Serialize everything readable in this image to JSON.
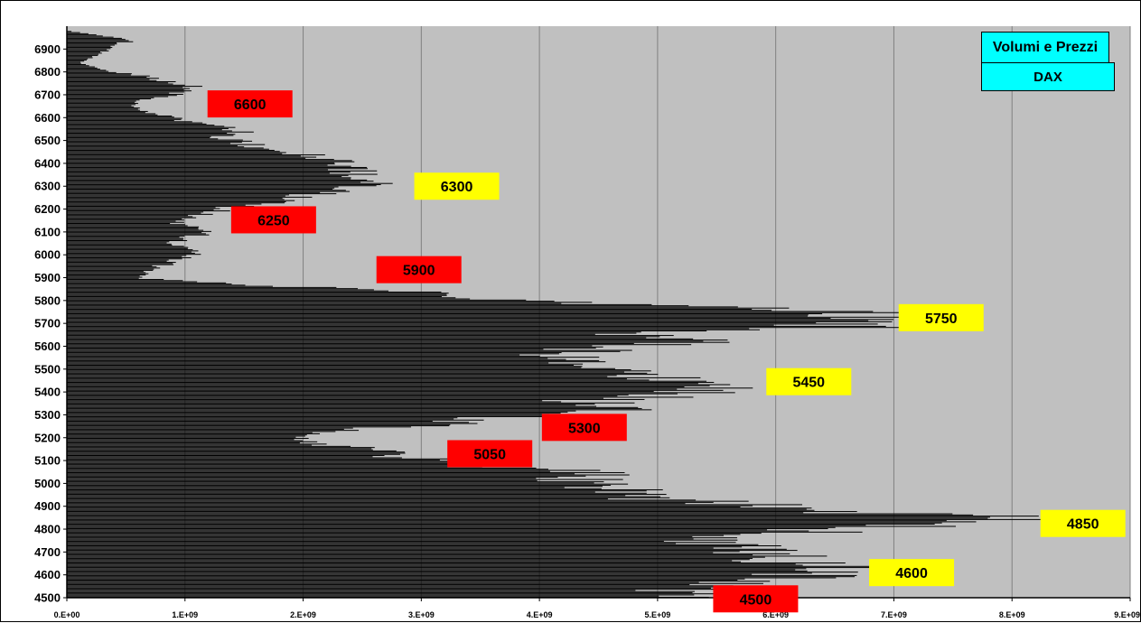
{
  "legend": {
    "title": "Volumi e Prezzi",
    "subtitle": "DAX"
  },
  "colors": {
    "plot_bg": "#c0c0c0",
    "bars": "#000000",
    "grid": "#808080",
    "support_label": "#ff0000",
    "resistance_label": "#ffff00"
  },
  "chart_data": {
    "type": "bar",
    "orientation": "horizontal",
    "title": "",
    "xlabel": "",
    "ylabel": "",
    "xlim": [
      0,
      9000000000
    ],
    "ylim": [
      4500,
      7000
    ],
    "grid": "vertical",
    "x_ticks": [
      "0.E+00",
      "1.E+09",
      "2.E+09",
      "3.E+09",
      "4.E+09",
      "5.E+09",
      "6.E+09",
      "7.E+09",
      "8.E+09",
      "9.E+09"
    ],
    "y_ticks": [
      4500,
      4600,
      4700,
      4800,
      4900,
      5000,
      5100,
      5200,
      5300,
      5400,
      5500,
      5600,
      5700,
      5800,
      5900,
      6000,
      6100,
      6200,
      6300,
      6400,
      6500,
      6600,
      6700,
      6800,
      6900
    ],
    "profile_points": [
      [
        4500,
        5400000000.0
      ],
      [
        4520,
        5200000000.0
      ],
      [
        4540,
        5300000000.0
      ],
      [
        4560,
        5600000000.0
      ],
      [
        4580,
        6200000000.0
      ],
      [
        4600,
        6400000000.0
      ],
      [
        4620,
        6600000000.0
      ],
      [
        4640,
        6500000000.0
      ],
      [
        4660,
        6200000000.0
      ],
      [
        4680,
        6000000000.0
      ],
      [
        4700,
        5900000000.0
      ],
      [
        4720,
        5800000000.0
      ],
      [
        4740,
        5700000000.0
      ],
      [
        4760,
        5500000000.0
      ],
      [
        4780,
        6000000000.0
      ],
      [
        4800,
        6800000000.0
      ],
      [
        4820,
        7800000000.0
      ],
      [
        4840,
        8100000000.0
      ],
      [
        4860,
        7800000000.0
      ],
      [
        4880,
        6600000000.0
      ],
      [
        4900,
        6000000000.0
      ],
      [
        4920,
        5500000000.0
      ],
      [
        4940,
        5000000000.0
      ],
      [
        4960,
        4800000000.0
      ],
      [
        4980,
        4600000000.0
      ],
      [
        5000,
        4500000000.0
      ],
      [
        5020,
        4400000000.0
      ],
      [
        5040,
        4600000000.0
      ],
      [
        5060,
        4300000000.0
      ],
      [
        5080,
        3800000000.0
      ],
      [
        5100,
        3200000000.0
      ],
      [
        5120,
        2900000000.0
      ],
      [
        5140,
        2800000000.0
      ],
      [
        5160,
        2400000000.0
      ],
      [
        5180,
        2100000000.0
      ],
      [
        5200,
        2000000000.0
      ],
      [
        5220,
        2300000000.0
      ],
      [
        5240,
        2300000000.0
      ],
      [
        5260,
        3600000000.0
      ],
      [
        5280,
        3300000000.0
      ],
      [
        5300,
        4500000000.0
      ],
      [
        5320,
        4800000000.0
      ],
      [
        5340,
        4700000000.0
      ],
      [
        5360,
        4400000000.0
      ],
      [
        5380,
        5000000000.0
      ],
      [
        5400,
        5300000000.0
      ],
      [
        5420,
        5600000000.0
      ],
      [
        5440,
        5400000000.0
      ],
      [
        5460,
        5200000000.0
      ],
      [
        5480,
        5100000000.0
      ],
      [
        5500,
        4700000000.0
      ],
      [
        5520,
        4400000000.0
      ],
      [
        5540,
        4200000000.0
      ],
      [
        5560,
        4300000000.0
      ],
      [
        5580,
        4400000000.0
      ],
      [
        5600,
        4800000000.0
      ],
      [
        5620,
        5300000000.0
      ],
      [
        5640,
        5000000000.0
      ],
      [
        5660,
        4600000000.0
      ],
      [
        5680,
        6700000000.0
      ],
      [
        5700,
        6800000000.0
      ],
      [
        5720,
        6500000000.0
      ],
      [
        5740,
        7000000000.0
      ],
      [
        5760,
        6300000000.0
      ],
      [
        5780,
        5000000000.0
      ],
      [
        5800,
        3800000000.0
      ],
      [
        5820,
        3500000000.0
      ],
      [
        5840,
        3200000000.0
      ],
      [
        5860,
        2000000000.0
      ],
      [
        5880,
        1200000000.0
      ],
      [
        5900,
        600000000.0
      ],
      [
        5920,
        700000000.0
      ],
      [
        5940,
        750000000.0
      ],
      [
        5960,
        850000000.0
      ],
      [
        5980,
        950000000.0
      ],
      [
        6000,
        1050000000.0
      ],
      [
        6020,
        1100000000.0
      ],
      [
        6040,
        950000000.0
      ],
      [
        6060,
        950000000.0
      ],
      [
        6080,
        1100000000.0
      ],
      [
        6100,
        1150000000.0
      ],
      [
        6120,
        1050000000.0
      ],
      [
        6140,
        950000000.0
      ],
      [
        6160,
        1000000000.0
      ],
      [
        6180,
        1250000000.0
      ],
      [
        6200,
        1300000000.0
      ],
      [
        6220,
        1600000000.0
      ],
      [
        6240,
        1900000000.0
      ],
      [
        6260,
        2100000000.0
      ],
      [
        6280,
        2300000000.0
      ],
      [
        6300,
        2600000000.0
      ],
      [
        6320,
        2800000000.0
      ],
      [
        6340,
        2600000000.0
      ],
      [
        6360,
        2450000000.0
      ],
      [
        6380,
        2500000000.0
      ],
      [
        6400,
        2500000000.0
      ],
      [
        6420,
        2200000000.0
      ],
      [
        6440,
        2100000000.0
      ],
      [
        6460,
        1800000000.0
      ],
      [
        6480,
        1600000000.0
      ],
      [
        6500,
        1450000000.0
      ],
      [
        6520,
        1300000000.0
      ],
      [
        6540,
        1500000000.0
      ],
      [
        6560,
        1400000000.0
      ],
      [
        6580,
        1100000000.0
      ],
      [
        6600,
        900000000.0
      ],
      [
        6620,
        750000000.0
      ],
      [
        6640,
        600000000.0
      ],
      [
        6660,
        550000000.0
      ],
      [
        6680,
        650000000.0
      ],
      [
        6700,
        900000000.0
      ],
      [
        6720,
        1050000000.0
      ],
      [
        6740,
        1100000000.0
      ],
      [
        6760,
        850000000.0
      ],
      [
        6780,
        700000000.0
      ],
      [
        6800,
        400000000.0
      ],
      [
        6820,
        250000000.0
      ],
      [
        6840,
        100000000.0
      ],
      [
        6860,
        200000000.0
      ],
      [
        6880,
        300000000.0
      ],
      [
        6900,
        350000000.0
      ],
      [
        6920,
        400000000.0
      ],
      [
        6940,
        600000000.0
      ],
      [
        6960,
        300000000.0
      ],
      [
        6980,
        0.0
      ]
    ],
    "annotations": [
      {
        "text": "6600",
        "color": "red",
        "price": 6660,
        "volume": 1550000000.0
      },
      {
        "text": "6300",
        "color": "yellow",
        "price": 6300,
        "volume": 3300000000.0
      },
      {
        "text": "6250",
        "color": "red",
        "price": 6153,
        "volume": 1750000000.0
      },
      {
        "text": "5900",
        "color": "red",
        "price": 5935,
        "volume": 2980000000.0
      },
      {
        "text": "5750",
        "color": "yellow",
        "price": 5725,
        "volume": 7400000000.0
      },
      {
        "text": "5450",
        "color": "yellow",
        "price": 5445,
        "volume": 6280000000.0
      },
      {
        "text": "5300",
        "color": "red",
        "price": 5245,
        "volume": 4380000000.0
      },
      {
        "text": "5050",
        "color": "red",
        "price": 5130,
        "volume": 3580000000.0
      },
      {
        "text": "4850",
        "color": "yellow",
        "price": 4825,
        "volume": 8600000000.0
      },
      {
        "text": "4600",
        "color": "yellow",
        "price": 4610,
        "volume": 7150000000.0
      },
      {
        "text": "4500",
        "color": "red",
        "price": 4495,
        "volume": 5830000000.0
      }
    ]
  }
}
